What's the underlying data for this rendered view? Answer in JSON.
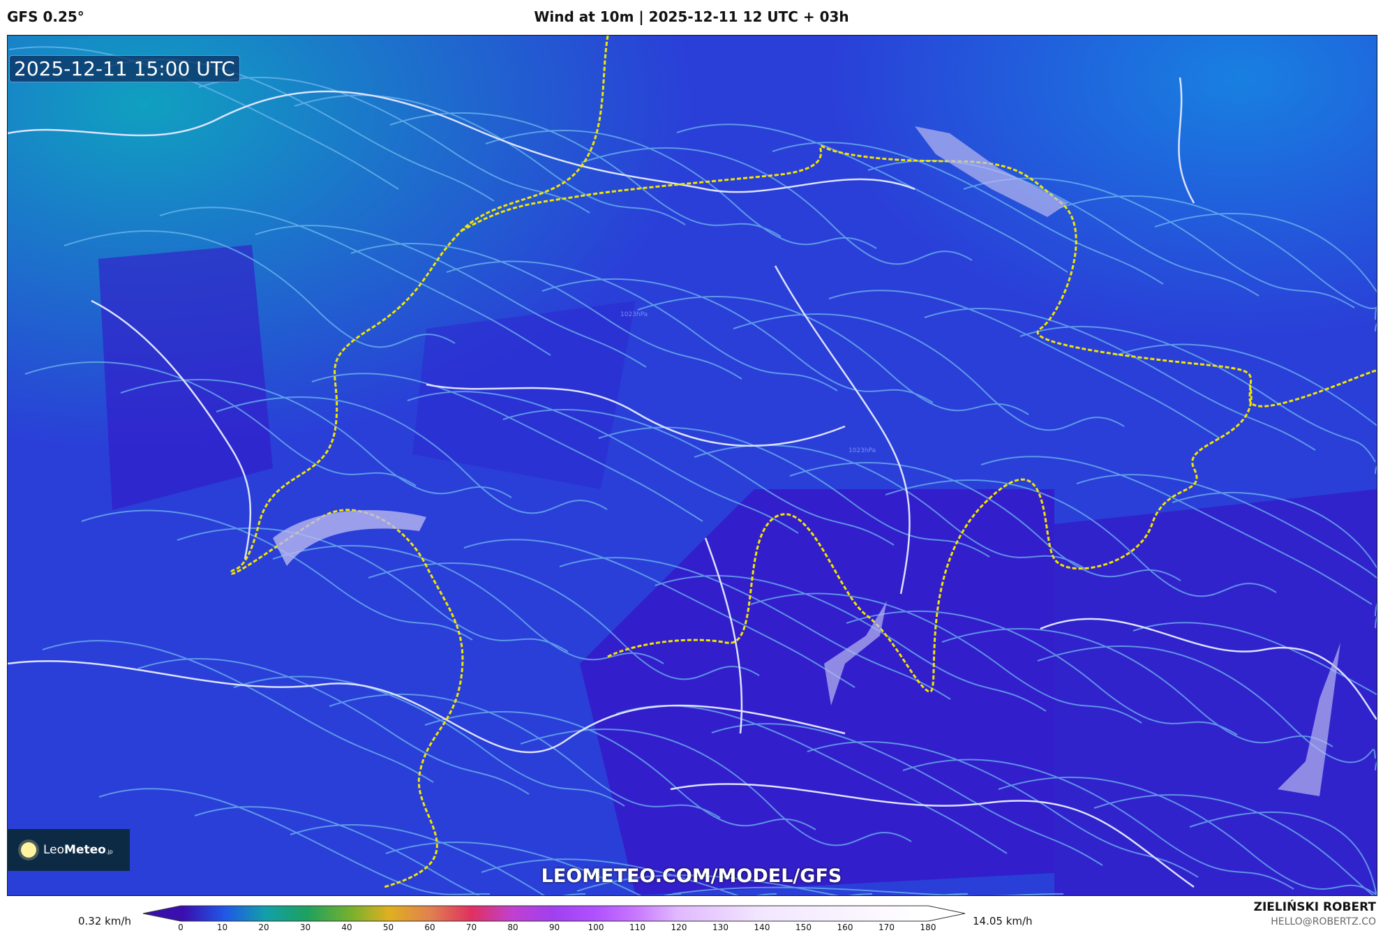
{
  "header": {
    "model": "GFS 0.25°",
    "title": "Wind at 10m | 2025-12-11 12 UTC + 03h"
  },
  "map": {
    "timestamp": "2025-12-11 15:00 UTC",
    "isobar_label": "1023hPa",
    "url": "LEOMETEO.COM/MODEL/GFS",
    "logo": {
      "text_light": "Leo",
      "text_bold": "Meteo",
      "suffix": ".jp"
    },
    "colors": {
      "background": "#2a3fd8",
      "streamline": "#6fb8f0",
      "border": "#dde3ff",
      "national_border": "#f2e600"
    }
  },
  "colorbar": {
    "min_label": "0.32 km/h",
    "max_label": "14.05 km/h",
    "ticks": [
      "0",
      "10",
      "20",
      "30",
      "40",
      "50",
      "60",
      "70",
      "80",
      "90",
      "100",
      "110",
      "120",
      "130",
      "140",
      "150",
      "160",
      "170",
      "180"
    ],
    "stops": [
      [
        "0",
        "#3a0fb0"
      ],
      [
        "10",
        "#2058e8"
      ],
      [
        "20",
        "#12a0a8"
      ],
      [
        "30",
        "#1ea060"
      ],
      [
        "40",
        "#70b030"
      ],
      [
        "50",
        "#e0b020"
      ],
      [
        "60",
        "#e08050"
      ],
      [
        "70",
        "#e03060"
      ],
      [
        "80",
        "#c040d0"
      ],
      [
        "90",
        "#a040f0"
      ],
      [
        "100",
        "#b050ff"
      ],
      [
        "110",
        "#c878ff"
      ],
      [
        "120",
        "#e0b8ff"
      ],
      [
        "140",
        "#f2e6ff"
      ],
      [
        "180",
        "#ffffff"
      ]
    ]
  },
  "credits": {
    "author": "ZIELIŃSKI ROBERT",
    "email": "HELLO@ROBERTZ.CO"
  }
}
